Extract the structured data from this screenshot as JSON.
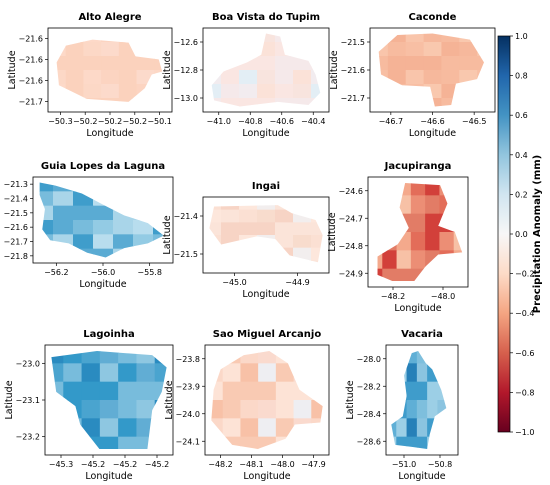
{
  "colorbar": {
    "label": "Precipitation Anomaly (mm)",
    "ticks": [
      "1.0",
      "0.8",
      "0.6",
      "0.4",
      "0.2",
      "0.0",
      "−0.2",
      "−0.4",
      "−0.6",
      "−0.8",
      "−1.0"
    ],
    "colormap": "RdBu",
    "range": [
      -1.0,
      1.0
    ]
  },
  "panels": [
    {
      "title": "Alto Alegre",
      "xlabel": "Longitude",
      "ylabel": "Latitude",
      "xticks": [
        "−50.3",
        "−50.2",
        "−50.2",
        "−50.2",
        "−50.1"
      ],
      "yticks": [
        "−21.6",
        "−21.6",
        "−21.6",
        "−21.7"
      ],
      "shape": [
        [
          0.12,
          0.18
        ],
        [
          0.35,
          0.1
        ],
        [
          0.66,
          0.14
        ],
        [
          0.72,
          0.32
        ],
        [
          0.92,
          0.36
        ],
        [
          0.95,
          0.52
        ],
        [
          0.86,
          0.56
        ],
        [
          0.8,
          0.74
        ],
        [
          0.66,
          0.92
        ],
        [
          0.3,
          0.88
        ],
        [
          0.06,
          0.7
        ],
        [
          0.04,
          0.4
        ]
      ],
      "colors": [
        "#fcd8c6",
        "#fbd2bd",
        "#fdd9c8",
        "#fcd4c1",
        "#fbd2bd",
        "#fcdacb"
      ]
    },
    {
      "title": "Boa Vista do Tupim",
      "xlabel": "Longitude",
      "ylabel": "Latitude",
      "xticks": [
        "−41.0",
        "−40.8",
        "−40.6",
        "−40.4"
      ],
      "yticks": [
        "−12.6",
        "−12.8",
        "−13.0"
      ],
      "shape": [
        [
          0.5,
          0.02
        ],
        [
          0.62,
          0.06
        ],
        [
          0.66,
          0.3
        ],
        [
          0.86,
          0.38
        ],
        [
          0.92,
          0.56
        ],
        [
          0.96,
          0.8
        ],
        [
          0.86,
          0.96
        ],
        [
          0.6,
          0.92
        ],
        [
          0.28,
          0.98
        ],
        [
          0.06,
          0.9
        ],
        [
          0.04,
          0.7
        ],
        [
          0.14,
          0.52
        ],
        [
          0.34,
          0.4
        ],
        [
          0.46,
          0.3
        ]
      ],
      "colors": [
        "#f2ecef",
        "#fae6e2",
        "#e3eef5",
        "#f8e4de",
        "#f5e9ea",
        "#fbe2d8"
      ]
    },
    {
      "title": "Caconde",
      "xlabel": "Longitude",
      "ylabel": "Latitude",
      "xticks": [
        "−46.7",
        "−46.6",
        "−46.5"
      ],
      "yticks": [
        "−21.5",
        "−21.6",
        "−21.7"
      ],
      "shape": [
        [
          0.2,
          0.04
        ],
        [
          0.5,
          0.02
        ],
        [
          0.82,
          0.1
        ],
        [
          0.94,
          0.4
        ],
        [
          0.88,
          0.62
        ],
        [
          0.7,
          0.68
        ],
        [
          0.66,
          0.96
        ],
        [
          0.52,
          0.98
        ],
        [
          0.48,
          0.72
        ],
        [
          0.24,
          0.7
        ],
        [
          0.06,
          0.56
        ],
        [
          0.04,
          0.26
        ]
      ],
      "colors": [
        "#f8bfa4",
        "#f5b396",
        "#f9c5ab",
        "#f6b89c",
        "#f7bb9f",
        "#f9c8ae"
      ]
    },
    {
      "title": "Guia Lopes da Laguna",
      "xlabel": "Longitude",
      "ylabel": "Latitude",
      "xticks": [
        "−56.2",
        "−56.0",
        "−55.8"
      ],
      "yticks": [
        "−21.3",
        "−21.4",
        "−21.5",
        "−21.6",
        "−21.7",
        "−21.8"
      ],
      "shape": [
        [
          0.02,
          0.02
        ],
        [
          0.14,
          0.06
        ],
        [
          0.34,
          0.16
        ],
        [
          0.52,
          0.32
        ],
        [
          0.66,
          0.44
        ],
        [
          0.84,
          0.54
        ],
        [
          0.96,
          0.7
        ],
        [
          0.84,
          0.8
        ],
        [
          0.66,
          0.86
        ],
        [
          0.52,
          0.98
        ],
        [
          0.38,
          0.92
        ],
        [
          0.24,
          0.8
        ],
        [
          0.1,
          0.76
        ],
        [
          0.04,
          0.62
        ],
        [
          0.06,
          0.36
        ],
        [
          0.02,
          0.18
        ]
      ],
      "colors": [
        "#3f9dcb",
        "#5aabd3",
        "#78bcdc",
        "#93cbe4",
        "#a9d5e9",
        "#b8ddee"
      ]
    },
    {
      "title": "Ingai",
      "xlabel": "Longitude",
      "ylabel": "Latitude",
      "xticks": [
        "−45.0",
        "−44.9"
      ],
      "yticks": [
        "−21.4",
        "−21.5"
      ],
      "shape": [
        [
          0.06,
          0.08
        ],
        [
          0.6,
          0.06
        ],
        [
          0.72,
          0.18
        ],
        [
          0.92,
          0.28
        ],
        [
          0.98,
          0.5
        ],
        [
          0.94,
          0.9
        ],
        [
          0.7,
          0.8
        ],
        [
          0.58,
          0.56
        ],
        [
          0.42,
          0.52
        ],
        [
          0.12,
          0.64
        ],
        [
          0.02,
          0.4
        ]
      ],
      "colors": [
        "#fbe0d3",
        "#f7d4c5",
        "#fde7dc",
        "#f2eeee",
        "#fbe4d9",
        "#f8dccd"
      ]
    },
    {
      "title": "Jacupiranga",
      "xlabel": "Longitude",
      "ylabel": "Latitude",
      "xticks": [
        "−48.2",
        "−48.0"
      ],
      "yticks": [
        "−24.6",
        "−24.7",
        "−24.8",
        "−24.9"
      ],
      "shape": [
        [
          0.36,
          0.02
        ],
        [
          0.74,
          0.04
        ],
        [
          0.82,
          0.22
        ],
        [
          0.72,
          0.44
        ],
        [
          0.9,
          0.5
        ],
        [
          0.98,
          0.7
        ],
        [
          0.72,
          0.72
        ],
        [
          0.58,
          0.84
        ],
        [
          0.46,
          0.98
        ],
        [
          0.22,
          0.98
        ],
        [
          0.06,
          0.92
        ],
        [
          0.06,
          0.74
        ],
        [
          0.28,
          0.62
        ],
        [
          0.4,
          0.46
        ],
        [
          0.3,
          0.26
        ]
      ],
      "colors": [
        "#f7c1a6",
        "#e27c66",
        "#f4a98c",
        "#e36d59",
        "#d2403a",
        "#ec8e75"
      ]
    },
    {
      "title": "Lagoinha",
      "xlabel": "Longitude",
      "ylabel": "Latitude",
      "xticks": [
        "−45.3",
        "−45.2",
        "−45.2",
        "−45.2"
      ],
      "yticks": [
        "−23.0",
        "−23.1",
        "−23.2"
      ],
      "shape": [
        [
          0.02,
          0.08
        ],
        [
          0.4,
          0.02
        ],
        [
          0.86,
          0.06
        ],
        [
          0.98,
          0.18
        ],
        [
          0.94,
          0.42
        ],
        [
          0.86,
          0.6
        ],
        [
          0.82,
          0.98
        ],
        [
          0.42,
          0.98
        ],
        [
          0.26,
          0.74
        ],
        [
          0.22,
          0.56
        ],
        [
          0.06,
          0.42
        ]
      ],
      "colors": [
        "#2a8bc0",
        "#3399c9",
        "#4aa4cf",
        "#61add4",
        "#78bcdc",
        "#8ec7e1"
      ]
    },
    {
      "title": "Sao Miguel Arcanjo",
      "xlabel": "Longitude",
      "ylabel": "Latitude",
      "xticks": [
        "−48.2",
        "−48.1",
        "−48.0",
        "−47.9"
      ],
      "yticks": [
        "−23.8",
        "−23.9",
        "−24.0",
        "−24.1"
      ],
      "shape": [
        [
          0.1,
          0.2
        ],
        [
          0.3,
          0.06
        ],
        [
          0.52,
          0.02
        ],
        [
          0.68,
          0.14
        ],
        [
          0.78,
          0.4
        ],
        [
          0.98,
          0.56
        ],
        [
          0.96,
          0.72
        ],
        [
          0.74,
          0.74
        ],
        [
          0.66,
          0.88
        ],
        [
          0.42,
          0.98
        ],
        [
          0.2,
          0.94
        ],
        [
          0.02,
          0.7
        ],
        [
          0.04,
          0.4
        ]
      ],
      "colors": [
        "#f8c1a7",
        "#f9cab3",
        "#fbd8c8",
        "#fadace",
        "#fde3d6",
        "#eeeef2"
      ]
    },
    {
      "title": "Vacaria",
      "xlabel": "Longitude",
      "ylabel": "Latitude",
      "xticks": [
        "−51.0",
        "−50.8"
      ],
      "yticks": [
        "−28.0",
        "−28.2",
        "−28.4",
        "−28.6"
      ],
      "shape": [
        [
          0.34,
          0.04
        ],
        [
          0.44,
          0.02
        ],
        [
          0.56,
          0.14
        ],
        [
          0.66,
          0.2
        ],
        [
          0.8,
          0.4
        ],
        [
          0.88,
          0.58
        ],
        [
          0.7,
          0.66
        ],
        [
          0.62,
          0.84
        ],
        [
          0.58,
          0.98
        ],
        [
          0.34,
          0.96
        ],
        [
          0.08,
          0.94
        ],
        [
          0.02,
          0.74
        ],
        [
          0.2,
          0.66
        ],
        [
          0.26,
          0.46
        ],
        [
          0.22,
          0.26
        ]
      ],
      "colors": [
        "#2680b8",
        "#3f9ccb",
        "#5fafd6",
        "#7ebfdd",
        "#9ccfe6",
        "#8bc4e0"
      ]
    }
  ]
}
